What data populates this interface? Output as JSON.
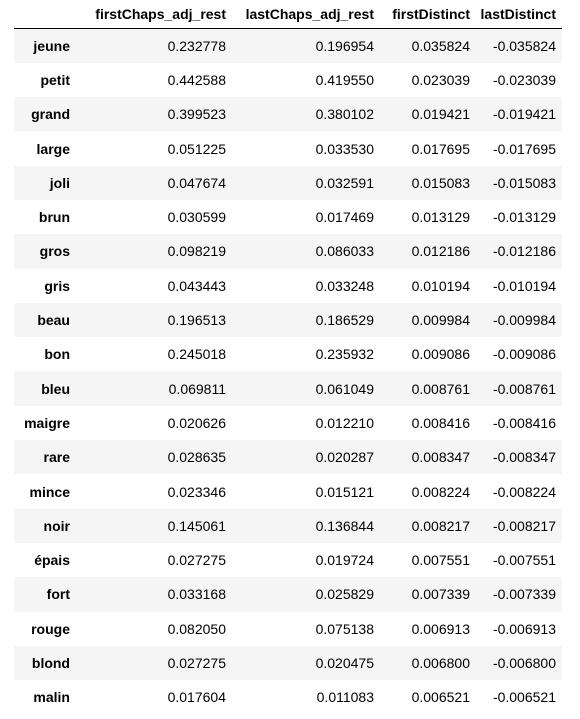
{
  "table": {
    "index_header": "",
    "columns": [
      "firstChaps_adj_rest",
      "lastChaps_adj_rest",
      "firstDistinct",
      "lastDistinct"
    ],
    "rows": [
      {
        "index": "jeune",
        "values": [
          "0.232778",
          "0.196954",
          "0.035824",
          "-0.035824"
        ]
      },
      {
        "index": "petit",
        "values": [
          "0.442588",
          "0.419550",
          "0.023039",
          "-0.023039"
        ]
      },
      {
        "index": "grand",
        "values": [
          "0.399523",
          "0.380102",
          "0.019421",
          "-0.019421"
        ]
      },
      {
        "index": "large",
        "values": [
          "0.051225",
          "0.033530",
          "0.017695",
          "-0.017695"
        ]
      },
      {
        "index": "joli",
        "values": [
          "0.047674",
          "0.032591",
          "0.015083",
          "-0.015083"
        ]
      },
      {
        "index": "brun",
        "values": [
          "0.030599",
          "0.017469",
          "0.013129",
          "-0.013129"
        ]
      },
      {
        "index": "gros",
        "values": [
          "0.098219",
          "0.086033",
          "0.012186",
          "-0.012186"
        ]
      },
      {
        "index": "gris",
        "values": [
          "0.043443",
          "0.033248",
          "0.010194",
          "-0.010194"
        ]
      },
      {
        "index": "beau",
        "values": [
          "0.196513",
          "0.186529",
          "0.009984",
          "-0.009984"
        ]
      },
      {
        "index": "bon",
        "values": [
          "0.245018",
          "0.235932",
          "0.009086",
          "-0.009086"
        ]
      },
      {
        "index": "bleu",
        "values": [
          "0.069811",
          "0.061049",
          "0.008761",
          "-0.008761"
        ]
      },
      {
        "index": "maigre",
        "values": [
          "0.020626",
          "0.012210",
          "0.008416",
          "-0.008416"
        ]
      },
      {
        "index": "rare",
        "values": [
          "0.028635",
          "0.020287",
          "0.008347",
          "-0.008347"
        ]
      },
      {
        "index": "mince",
        "values": [
          "0.023346",
          "0.015121",
          "0.008224",
          "-0.008224"
        ]
      },
      {
        "index": "noir",
        "values": [
          "0.145061",
          "0.136844",
          "0.008217",
          "-0.008217"
        ]
      },
      {
        "index": "épais",
        "values": [
          "0.027275",
          "0.019724",
          "0.007551",
          "-0.007551"
        ]
      },
      {
        "index": "fort",
        "values": [
          "0.033168",
          "0.025829",
          "0.007339",
          "-0.007339"
        ]
      },
      {
        "index": "rouge",
        "values": [
          "0.082050",
          "0.075138",
          "0.006913",
          "-0.006913"
        ]
      },
      {
        "index": "blond",
        "values": [
          "0.027275",
          "0.020475",
          "0.006800",
          "-0.006800"
        ]
      },
      {
        "index": "malin",
        "values": [
          "0.017604",
          "0.011083",
          "0.006521",
          "-0.006521"
        ]
      }
    ]
  }
}
